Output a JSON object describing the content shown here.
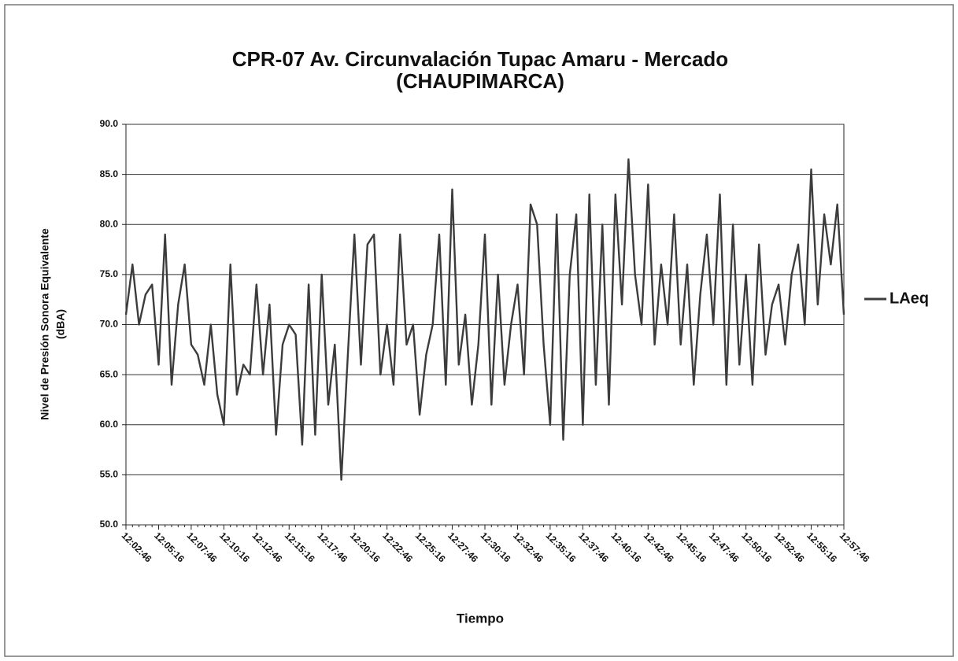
{
  "chart_data": {
    "type": "line",
    "title": "CPR-07 Av. Circunvalación Tupac Amaru - Mercado",
    "subtitle": "(CHAUPIMARCA)",
    "x_label": "Tiempo",
    "y_label": "Nivel de Presión Sonora  Equivalente",
    "y_label_unit": "(dBA)",
    "categories": [
      "12:02:46",
      null,
      null,
      null,
      null,
      "12:05:16",
      null,
      null,
      null,
      null,
      "12:07:46",
      null,
      null,
      null,
      null,
      "12:10:16",
      null,
      null,
      null,
      null,
      "12:12:46",
      null,
      null,
      null,
      null,
      "12:15:16",
      null,
      null,
      null,
      null,
      "12:17:46",
      null,
      null,
      null,
      null,
      "12:20:16",
      null,
      null,
      null,
      null,
      "12:22:46",
      null,
      null,
      null,
      null,
      "12:25:16",
      null,
      null,
      null,
      null,
      "12:27:46",
      null,
      null,
      null,
      null,
      "12:30:16",
      null,
      null,
      null,
      null,
      "12:32:46",
      null,
      null,
      null,
      null,
      "12:35:16",
      null,
      null,
      null,
      null,
      "12:37:46",
      null,
      null,
      null,
      null,
      "12:40:16",
      null,
      null,
      null,
      null,
      "12:42:46",
      null,
      null,
      null,
      null,
      "12:45:16",
      null,
      null,
      null,
      null,
      "12:47:46",
      null,
      null,
      null,
      null,
      "12:50:16",
      null,
      null,
      null,
      null,
      "12:52:46",
      null,
      null,
      null,
      null,
      "12:55:16",
      null,
      null,
      null,
      null,
      "12:57:46"
    ],
    "series": [
      {
        "name": "LAeq",
        "color": "#3c3c3c",
        "values": [
          71,
          76,
          70,
          73,
          74,
          66,
          79,
          64,
          72,
          76,
          68,
          67,
          64,
          70,
          63,
          60,
          76,
          63,
          66,
          65,
          74,
          65,
          72,
          59,
          68,
          70,
          69,
          58,
          74,
          59,
          75,
          62,
          68,
          54.5,
          67,
          79,
          66,
          78,
          79,
          65,
          70,
          64,
          79,
          68,
          70,
          61,
          67,
          70,
          79,
          64,
          83.5,
          66,
          71,
          62,
          68,
          79,
          62,
          75,
          64,
          70,
          74,
          65,
          82,
          80,
          68,
          60,
          81,
          58.5,
          75,
          81,
          60,
          83,
          64,
          80,
          62,
          83,
          72,
          86.5,
          75,
          70,
          84,
          68,
          76,
          70,
          81,
          68,
          76,
          64,
          73,
          79,
          70,
          83,
          64,
          80,
          66,
          75,
          64,
          78,
          67,
          72,
          74,
          68,
          75,
          78,
          70,
          85.5,
          72,
          81,
          76,
          82,
          71
        ]
      }
    ],
    "ylim": [
      50,
      90
    ],
    "yticks": [
      {
        "value": 50,
        "label": "50.0"
      },
      {
        "value": 55,
        "label": "55.0"
      },
      {
        "value": 60,
        "label": "60.0"
      },
      {
        "value": 65,
        "label": "65.0"
      },
      {
        "value": 70,
        "label": "70.0"
      },
      {
        "value": 75,
        "label": "75.0"
      },
      {
        "value": 80,
        "label": "80.0"
      },
      {
        "value": 85,
        "label": "85.0"
      },
      {
        "value": 90,
        "label": "90.0"
      }
    ],
    "grid": true,
    "legend": "right"
  }
}
